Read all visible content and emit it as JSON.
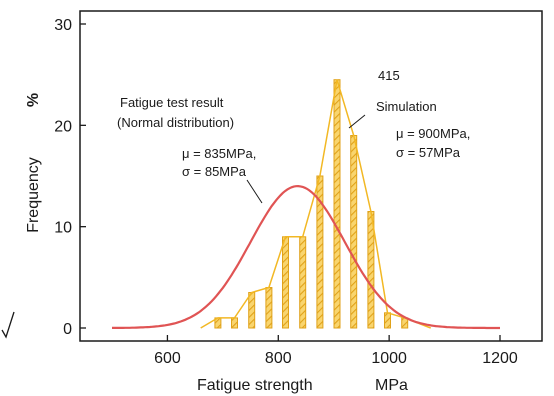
{
  "chart_data": {
    "type": "bar",
    "title": "",
    "xlabel": "Fatigue strength",
    "xunit": "MPa",
    "ylabel": "Frequency",
    "yunit": "%",
    "xlim": [
      450,
      1270
    ],
    "ylim": [
      0,
      31
    ],
    "xticks": [
      600,
      800,
      1000,
      1200
    ],
    "yticks": [
      0,
      10,
      20,
      30
    ],
    "grid": false,
    "legend": "none",
    "colors": {
      "histogram": "#f2b824",
      "histogram_edge": "#e0a21a",
      "normal_curve": "#e05454",
      "axis": "#1a1a1a"
    },
    "histogram": {
      "name": "Simulation",
      "bin_centers": [
        691,
        721,
        752,
        783,
        813,
        844,
        875,
        906,
        936,
        967,
        997,
        1028
      ],
      "values": [
        1,
        1,
        3.5,
        4,
        9,
        9,
        15,
        24.5,
        19,
        11.5,
        1.5,
        1
      ],
      "trace_line": true
    },
    "normal_curve": {
      "name": "Fatigue test result (Normal distribution)",
      "mean": 835,
      "sd": 85,
      "peak": 14,
      "x_range": [
        500,
        1200
      ]
    },
    "annotations": {
      "test_label_line1": "Fatigue test result",
      "test_label_line2": "(Normal distribution)",
      "test_mu": "μ = 835MPa,",
      "test_sigma": "σ = 85MPa",
      "count": "415",
      "sim_label": "Simulation",
      "sim_mu": "μ = 900MPa,",
      "sim_sigma": "σ = 57MPa"
    }
  }
}
